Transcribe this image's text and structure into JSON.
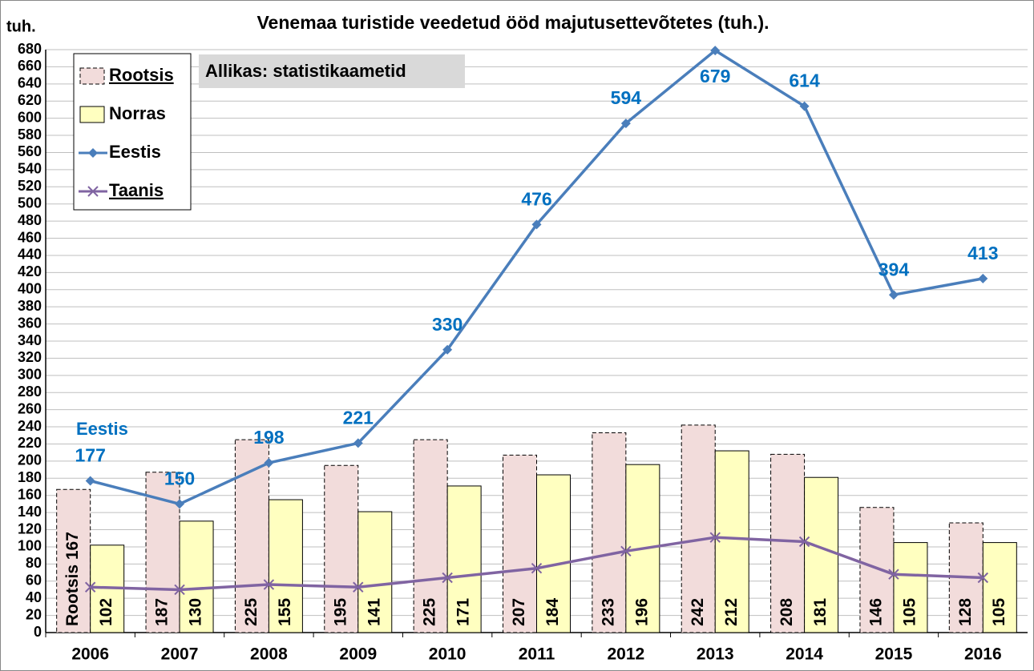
{
  "chart_data": {
    "type": "bar",
    "title": "Venemaa turistide veedetud ööd majutusettevõtetes (tuh.).",
    "y_label": "tuh.",
    "annotations": [
      "Allikas: statistikaametid",
      "Eestis"
    ],
    "categories": [
      "2006",
      "2007",
      "2008",
      "2009",
      "2010",
      "2011",
      "2012",
      "2013",
      "2014",
      "2015",
      "2016"
    ],
    "series": [
      {
        "name": "Rootsis",
        "type": "bar",
        "color": "#f2dcdb",
        "values": [
          167,
          187,
          225,
          195,
          225,
          207,
          233,
          242,
          208,
          146,
          128
        ],
        "value_labels": [
          "Rootsis 167",
          "187",
          "225",
          "195",
          "225",
          "207",
          "233",
          "242",
          "208",
          "146",
          "128"
        ]
      },
      {
        "name": "Norras",
        "type": "bar",
        "color": "#ffffc0",
        "values": [
          102,
          130,
          155,
          141,
          171,
          184,
          196,
          212,
          181,
          105,
          105
        ]
      },
      {
        "name": "Eestis",
        "type": "line",
        "marker": "diamond",
        "color": "#4a7ebb",
        "values": [
          177,
          150,
          198,
          221,
          330,
          476,
          594,
          679,
          614,
          394,
          413
        ]
      },
      {
        "name": "Taanis",
        "type": "line",
        "marker": "x",
        "color": "#8064a2",
        "values": [
          53,
          50,
          56,
          53,
          64,
          75,
          95,
          111,
          106,
          68,
          64
        ]
      }
    ],
    "ylim": [
      0,
      680
    ],
    "yticks": [
      0,
      20,
      40,
      60,
      80,
      100,
      120,
      140,
      160,
      180,
      200,
      220,
      240,
      260,
      280,
      300,
      320,
      340,
      360,
      380,
      400,
      420,
      440,
      460,
      480,
      500,
      520,
      540,
      560,
      580,
      600,
      620,
      640,
      660,
      680
    ],
    "grid": true,
    "legend": "upper left"
  }
}
